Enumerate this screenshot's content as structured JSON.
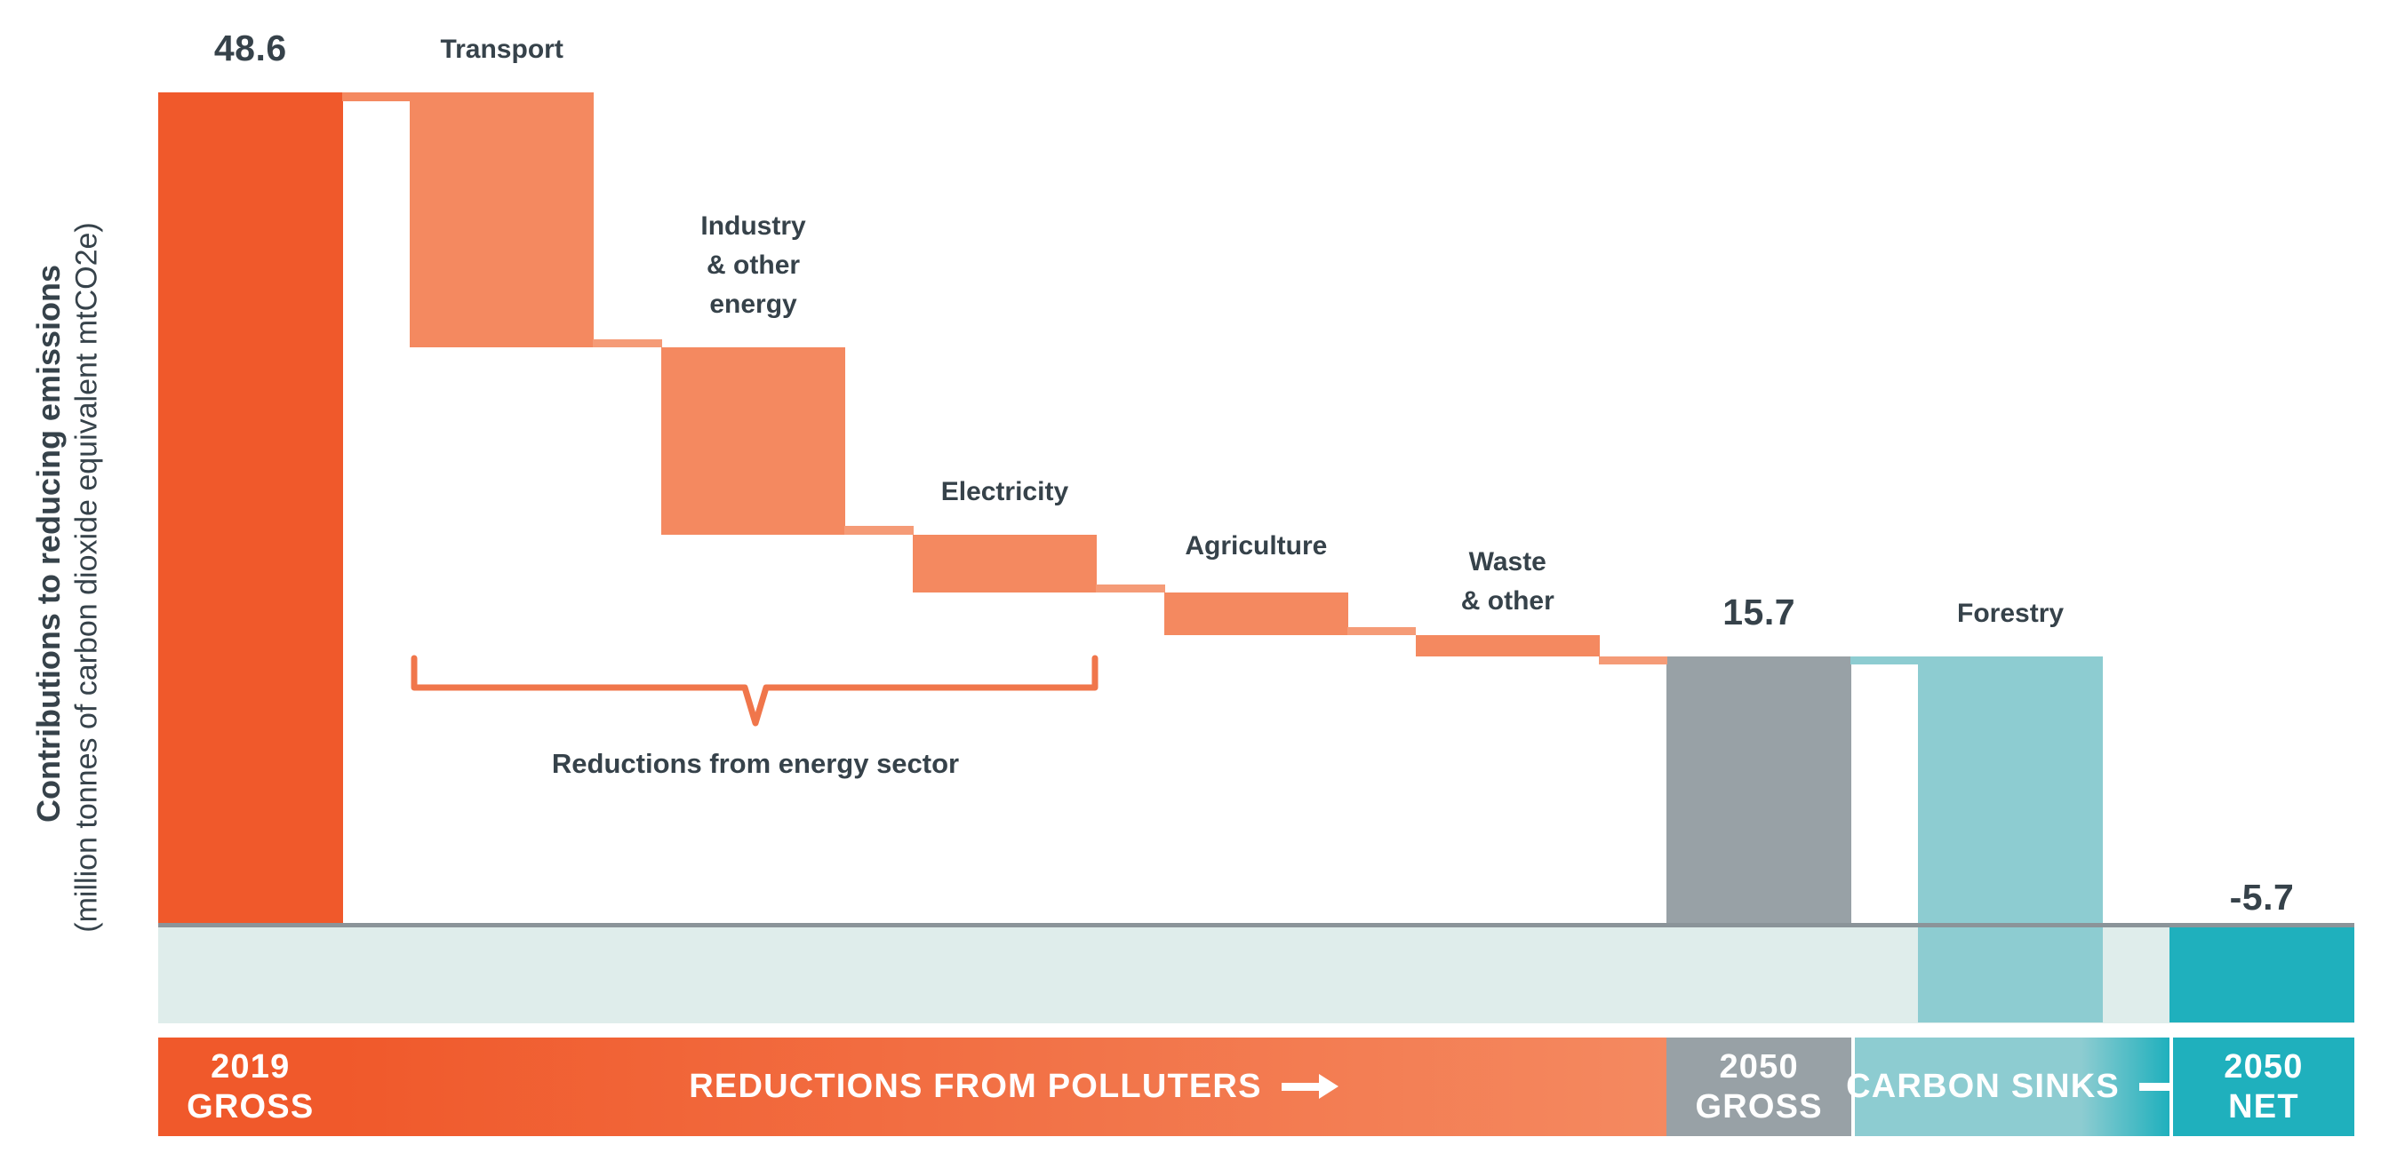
{
  "palette": {
    "dark_orange": "#F0592B",
    "light_orange": "#F48960",
    "connector_orange": "#F59B77",
    "bar_gray": "#98A1A6",
    "zero_line": "#8B9499",
    "pale_band": "#DFEDEB",
    "mid_teal": "#8DCCD1",
    "dark_teal": "#1FB0BD",
    "text_slate": "#36424A",
    "bracket": "#F0764B",
    "label_white": "#FFFFFF",
    "background": "#FFFFFF"
  },
  "y_axis": {
    "title": "Contributions to reducing emissions",
    "subtitle": "(million tonnes of carbon dioxide equivalent mtCO2e)"
  },
  "annotation": {
    "label": "Reductions from energy sector",
    "spans_bars": [
      "Transport",
      "Industry & other energy",
      "Electricity"
    ]
  },
  "chart_data": {
    "type": "bar",
    "subtype": "waterfall",
    "title": "",
    "xlabel": "",
    "ylabel": "Contributions to reducing emissions (million tonnes of carbon dioxide equivalent mtCO2e)",
    "baseline": 0,
    "y_range": [
      -5.7,
      48.6
    ],
    "grid": false,
    "legend_position": "bottom-band",
    "values_note": "Only 48.6, 15.7 and -5.7 are printed on the chart; intermediate step values are estimated from bar heights (steps sum to the printed totals).",
    "categories": [
      "2019 GROSS",
      "Transport",
      "Industry & other energy",
      "Electricity",
      "Agriculture",
      "Waste & other",
      "2050 GROSS",
      "Forestry",
      "2050 NET"
    ],
    "values": [
      48.6,
      -14.9,
      -10.9,
      -3.4,
      -2.5,
      -1.2,
      15.7,
      -21.4,
      -5.7
    ],
    "bars": [
      {
        "id": "gross-2019",
        "category": "2019 GROSS",
        "bar_type": "total",
        "value": 48.6,
        "top": 48.6,
        "bottom": 0,
        "estimated": false,
        "color": "dark_orange",
        "top_label": "48.6",
        "label_kind": "value",
        "label_gap": 26
      },
      {
        "id": "transport",
        "category": "Transport",
        "bar_type": "decrease",
        "value": -14.9,
        "top": 48.6,
        "bottom": 33.7,
        "estimated": true,
        "color": "light_orange",
        "top_label": "Transport",
        "label_kind": "category",
        "label_gap": 26
      },
      {
        "id": "industry",
        "category": "Industry & other energy",
        "bar_type": "decrease",
        "value": -10.9,
        "top": 33.7,
        "bottom": 22.8,
        "estimated": true,
        "color": "light_orange",
        "top_label": "Industry\n& other\nenergy",
        "label_kind": "category",
        "label_gap": 26
      },
      {
        "id": "electricity",
        "category": "Electricity",
        "bar_type": "decrease",
        "value": -3.4,
        "top": 22.8,
        "bottom": 19.4,
        "estimated": true,
        "color": "light_orange",
        "top_label": "Electricity",
        "label_kind": "category",
        "label_gap": 26
      },
      {
        "id": "agriculture",
        "category": "Agriculture",
        "bar_type": "decrease",
        "value": -2.5,
        "top": 19.4,
        "bottom": 16.9,
        "estimated": true,
        "color": "light_orange",
        "top_label": "Agriculture",
        "label_kind": "category",
        "label_gap": 30
      },
      {
        "id": "waste",
        "category": "Waste & other",
        "bar_type": "decrease",
        "value": -1.2,
        "top": 16.9,
        "bottom": 15.7,
        "estimated": true,
        "color": "light_orange",
        "top_label": "Waste\n& other",
        "label_kind": "category",
        "label_gap": 16
      },
      {
        "id": "gross-2050",
        "category": "2050 GROSS",
        "bar_type": "total",
        "value": 15.7,
        "top": 15.7,
        "bottom": 0,
        "estimated": false,
        "color": "bar_gray",
        "top_label": "15.7",
        "label_kind": "value",
        "label_gap": 26
      },
      {
        "id": "forestry",
        "category": "Forestry",
        "bar_type": "decrease",
        "value": -21.4,
        "top": 15.7,
        "bottom": -5.7,
        "estimated": false,
        "color": "mid_teal",
        "top_label": "Forestry",
        "label_kind": "category",
        "label_gap": 26
      },
      {
        "id": "net-2050",
        "category": "2050 NET",
        "bar_type": "total",
        "value": -5.7,
        "top": 0,
        "bottom": -5.7,
        "estimated": false,
        "color": "dark_teal",
        "top_label": "-5.7",
        "label_kind": "value",
        "label_gap": 8
      }
    ]
  },
  "legend": {
    "segments": [
      {
        "id": "gross-2019",
        "label": "2019\nGROSS",
        "color": "dark_orange"
      },
      {
        "id": "reductions-from-polluters",
        "label": "REDUCTIONS FROM POLLUTERS",
        "gradient": [
          {
            "color": "dark_orange",
            "at": "0%"
          },
          {
            "color": "light_orange",
            "at": "100%"
          }
        ],
        "arrow": true
      },
      {
        "id": "gross-2050",
        "label": "2050\nGROSS",
        "color": "bar_gray"
      },
      {
        "id": "carbon-sinks",
        "label": "CARBON SINKS",
        "gradient": [
          {
            "color": "mid_teal",
            "at": "0%"
          },
          {
            "color": "mid_teal",
            "at": "72%"
          },
          {
            "color": "dark_teal",
            "at": "100%"
          }
        ],
        "arrow": true,
        "separator": true
      },
      {
        "id": "net-2050",
        "label": "2050\nNET",
        "color": "dark_teal",
        "separator": true
      }
    ]
  }
}
